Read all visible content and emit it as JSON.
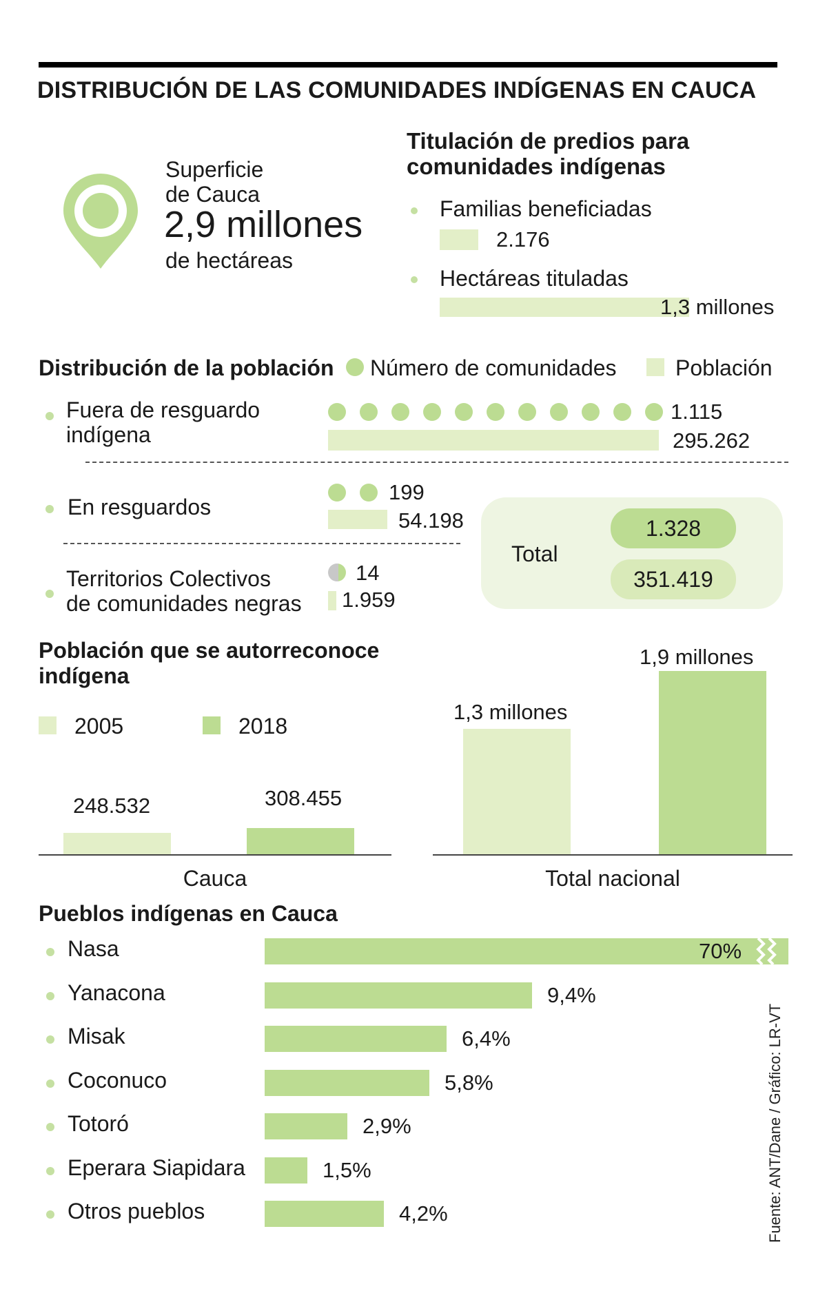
{
  "header": {
    "title": "DISTRIBUCIÓN DE LAS COMUNIDADES INDÍGENAS EN CAUCA"
  },
  "superficie": {
    "line1": "Superficie",
    "line2": "de Cauca",
    "value": "2,9 millones",
    "unit": "de hectáreas",
    "icon": "location-pin-icon"
  },
  "titulacion": {
    "title_line1": "Titulación de predios para",
    "title_line2": "comunidades indígenas",
    "familias_label": "Familias beneficiadas",
    "familias_value": "2.176",
    "hectareas_label": "Hectáreas tituladas",
    "hectareas_value": "1,3 millones"
  },
  "distribucion": {
    "title": "Distribución de la población",
    "legend_comunidades": "Número de comunidades",
    "legend_poblacion": "Población",
    "rows": [
      {
        "label_line1": "Fuera de resguardo",
        "label_line2": "indígena",
        "comunidades": "1.115",
        "poblacion": "295.262"
      },
      {
        "label_line1": "En resguardos",
        "label_line2": "",
        "comunidades": "199",
        "poblacion": "54.198"
      },
      {
        "label_line1": "Territorios Colectivos",
        "label_line2": "de comunidades negras",
        "comunidades": "14",
        "poblacion": "1.959"
      }
    ],
    "total_label": "Total",
    "total_comunidades": "1.328",
    "total_poblacion": "351.419"
  },
  "autorreconoce": {
    "title_line1": "Población que se autorreconoce",
    "title_line2": "indígena",
    "legend_2005": "2005",
    "legend_2018": "2018",
    "cauca_label": "Cauca",
    "cauca_2005": "248.532",
    "cauca_2018": "308.455",
    "nacional_label": "Total nacional",
    "nacional_2005": "1,3 millones",
    "nacional_2018": "1,9 millones"
  },
  "pueblos": {
    "title": "Pueblos indígenas en Cauca",
    "items": [
      {
        "name": "Nasa",
        "value": "70%"
      },
      {
        "name": "Yanacona",
        "value": "9,4%"
      },
      {
        "name": "Misak",
        "value": "6,4%"
      },
      {
        "name": "Coconuco",
        "value": "5,8%"
      },
      {
        "name": "Totoró",
        "value": "2,9%"
      },
      {
        "name": "Eperara Siapidara",
        "value": "1,5%"
      },
      {
        "name": "Otros pueblos",
        "value": "4,2%"
      }
    ]
  },
  "source": "Fuente: ANT/Dane / Gráfico: LR-VT",
  "colors": {
    "light_green": "#e3efc8",
    "mid_green": "#bcdc92",
    "panel_green": "#eef5e2",
    "grey": "#c8c8c8"
  },
  "chart_data": [
    {
      "type": "bar",
      "title": "Titulación de predios para comunidades indígenas",
      "categories": [
        "Familias beneficiadas",
        "Hectáreas tituladas"
      ],
      "values": [
        2176,
        1300000
      ]
    },
    {
      "type": "bar",
      "title": "Distribución de la población",
      "categories": [
        "Fuera de resguardo indígena",
        "En resguardos",
        "Territorios Colectivos de comunidades negras"
      ],
      "series": [
        {
          "name": "Número de comunidades",
          "values": [
            1115,
            199,
            14
          ]
        },
        {
          "name": "Población",
          "values": [
            295262,
            54198,
            1959
          ]
        }
      ],
      "totals": {
        "Número de comunidades": 1328,
        "Población": 351419
      }
    },
    {
      "type": "bar",
      "title": "Población que se autorreconoce indígena",
      "categories": [
        "Cauca",
        "Total nacional"
      ],
      "series": [
        {
          "name": "2005",
          "values": [
            248532,
            1300000
          ]
        },
        {
          "name": "2018",
          "values": [
            308455,
            1900000
          ]
        }
      ]
    },
    {
      "type": "bar",
      "title": "Pueblos indígenas en Cauca",
      "categories": [
        "Nasa",
        "Yanacona",
        "Misak",
        "Coconuco",
        "Totoró",
        "Eperara Siapidara",
        "Otros pueblos"
      ],
      "values": [
        70,
        9.4,
        6.4,
        5.8,
        2.9,
        1.5,
        4.2
      ]
    }
  ]
}
